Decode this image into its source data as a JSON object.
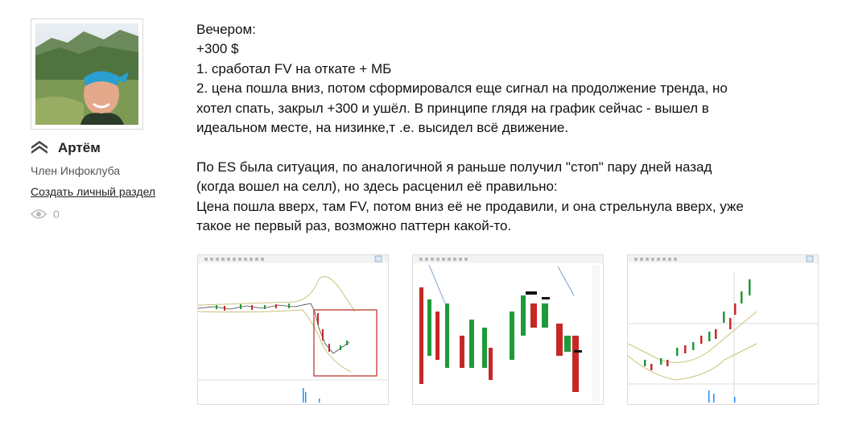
{
  "author": {
    "name": "Артём",
    "role": "Член Инфоклуба",
    "create_section_link": "Создать личный раздел",
    "views_count": "0",
    "rank_icon": "chevron-rank-icon",
    "avatar_icon": "user-avatar-photo"
  },
  "post": {
    "lines": [
      "Вечером:",
      "+300 $",
      "1. сработал FV на откате + МБ",
      "2. цена пошла вниз, потом сформировался еще сигнал на продолжение тренда, но",
      "хотел спать, закрыл +300 и ушёл. В принципе глядя на график сейчас - вышел в",
      "идеальном месте, на низинке,т .е. высидел всё движение.",
      "",
      "По ES была ситуация, по аналогичной я раньше получил \"стоп\" пару дней назад",
      "(когда вошел на селл), но здесь расценил её правильно:",
      "Цена пошла вверх, там FV, потом вниз её не продавили, и она стрельнула вверх, уже",
      "такое не первый раз, возможно паттерн какой-то."
    ]
  },
  "attachments": [
    {
      "name": "chart-screenshot-1",
      "icon": "candlestick-chart-thumbnail"
    },
    {
      "name": "chart-screenshot-2",
      "icon": "cluster-chart-thumbnail"
    },
    {
      "name": "chart-screenshot-3",
      "icon": "candlestick-chart-thumbnail"
    }
  ],
  "colors": {
    "bull": "#1f9a3a",
    "bear": "#c62828",
    "band": "#c9c27a",
    "link": "#222222"
  }
}
